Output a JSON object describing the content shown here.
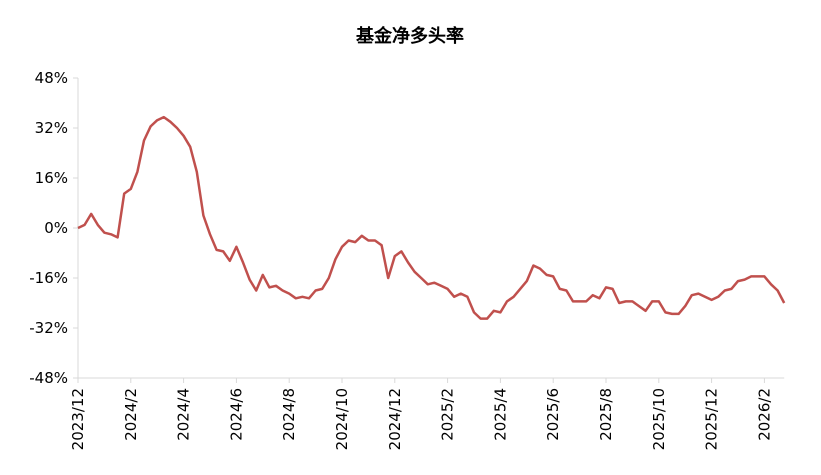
{
  "chart_data": {
    "type": "line",
    "title": "基金净多头率",
    "categories": [
      "2023/12",
      null,
      null,
      null,
      null,
      null,
      null,
      null,
      "2024/2",
      null,
      null,
      null,
      null,
      null,
      null,
      null,
      "2024/4",
      null,
      null,
      null,
      null,
      null,
      null,
      null,
      "2024/6",
      null,
      null,
      null,
      null,
      null,
      null,
      null,
      "2024/8",
      null,
      null,
      null,
      null,
      null,
      null,
      null,
      "2024/10",
      null,
      null,
      null,
      null,
      null,
      null,
      null,
      "2024/12",
      null,
      null,
      null,
      null,
      null,
      null,
      null,
      "2025/2",
      null,
      null,
      null,
      null,
      null,
      null,
      null,
      "2025/4",
      null,
      null,
      null,
      null,
      null,
      null,
      null,
      "2025/6",
      null,
      null,
      null,
      null,
      null,
      null,
      null,
      "2025/8",
      null,
      null,
      null,
      null,
      null,
      null,
      null,
      "2025/10",
      null,
      null,
      null,
      null,
      null,
      null,
      null,
      "2025/12",
      null,
      null,
      null,
      null,
      null,
      null,
      null,
      "2026/2",
      null,
      null,
      null
    ],
    "values": [
      0,
      1,
      4.5,
      1,
      -1.5,
      -2,
      -3,
      11,
      12.5,
      18,
      28,
      32.5,
      34.5,
      35.5,
      34,
      32,
      29.5,
      26,
      18,
      4,
      -2,
      -7,
      -7.5,
      -10.5,
      -6,
      -11,
      -16.5,
      -20,
      -15,
      -19,
      -18.5,
      -20,
      -21,
      -22.5,
      -22,
      -22.5,
      -20,
      -19.5,
      -16,
      -10,
      -6,
      -4,
      -4.5,
      -2.5,
      -4,
      -4,
      -5.5,
      -16,
      -9,
      -7.5,
      -11,
      -14,
      -16,
      -18,
      -17.5,
      -18.5,
      -19.5,
      -22,
      -21,
      -22,
      -27,
      -29,
      -29,
      -26.5,
      -27,
      -23.5,
      -22,
      -19.5,
      -17,
      -12,
      -13,
      -15,
      -15.5,
      -19.5,
      -20,
      -23.5,
      -23.5,
      -23.5,
      -21.5,
      -22.5,
      -19,
      -19.5,
      -24,
      -23.5,
      -23.5,
      -25,
      -26.5,
      -23.5,
      -23.5,
      -27,
      -27.5,
      -27.5,
      -25,
      -21.5,
      -21,
      -22,
      -23,
      -22,
      -20,
      -19.5,
      -17,
      -16.5,
      -15.5,
      -15.5,
      -15.5,
      -18,
      -20,
      -24
    ],
    "color": "#c0504d",
    "ylim": [
      -48,
      48
    ],
    "yticks": [
      {
        "value": -48,
        "label": "-48%"
      },
      {
        "value": -32,
        "label": "-32%"
      },
      {
        "value": -16,
        "label": "-16%"
      },
      {
        "value": 0,
        "label": "0%"
      },
      {
        "value": 16,
        "label": "16%"
      },
      {
        "value": 32,
        "label": "32%"
      },
      {
        "value": 48,
        "label": "48%"
      }
    ],
    "grid": false
  }
}
